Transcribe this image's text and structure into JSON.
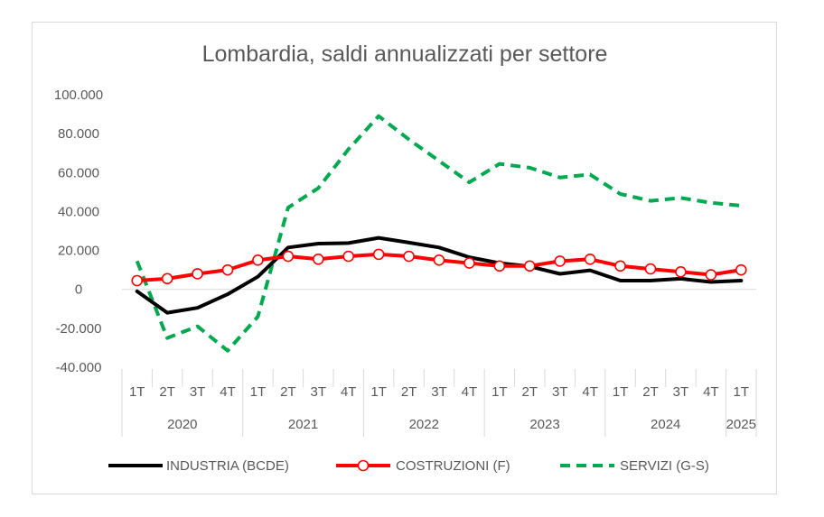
{
  "chart_data": {
    "type": "line",
    "title": "Lombardia, saldi annualizzati per settore",
    "xlabel": "",
    "ylabel": "",
    "ylim": [
      -40000,
      100000
    ],
    "y_ticks": [
      -40000,
      -20000,
      0,
      20000,
      40000,
      60000,
      80000,
      100000
    ],
    "y_tick_labels": [
      "-40.000",
      "-20.000",
      "0",
      "20.000",
      "40.000",
      "60.000",
      "80.000",
      "100.000"
    ],
    "grid": false,
    "legend_position": "bottom",
    "categories": [
      "1T",
      "2T",
      "3T",
      "4T",
      "1T",
      "2T",
      "3T",
      "4T",
      "1T",
      "2T",
      "3T",
      "4T",
      "1T",
      "2T",
      "3T",
      "4T",
      "1T",
      "2T",
      "3T",
      "4T",
      "1T"
    ],
    "years": [
      {
        "label": "2020",
        "quarters": 4
      },
      {
        "label": "2021",
        "quarters": 4
      },
      {
        "label": "2022",
        "quarters": 4
      },
      {
        "label": "2023",
        "quarters": 4
      },
      {
        "label": "2024",
        "quarters": 4
      },
      {
        "label": "2025",
        "quarters": 1
      }
    ],
    "series": [
      {
        "name": "INDUSTRIA (BCDE)",
        "color": "#000000",
        "style": "solid",
        "marker": "none",
        "values": [
          -1000,
          -12000,
          -9500,
          -2500,
          6500,
          21500,
          23500,
          23800,
          26500,
          24000,
          21500,
          16500,
          13500,
          11800,
          8000,
          9800,
          4500,
          4500,
          5500,
          3800,
          4500
        ]
      },
      {
        "name": "COSTRUZIONI (F)",
        "color": "#ff0000",
        "style": "solid",
        "marker": "circle",
        "values": [
          4500,
          5500,
          8000,
          10000,
          15000,
          17000,
          15500,
          17000,
          18000,
          17000,
          15000,
          13500,
          12000,
          12000,
          14500,
          15500,
          12000,
          10500,
          9000,
          7500,
          10000
        ]
      },
      {
        "name": "SERVIZI (G-S)",
        "color": "#00a94f",
        "style": "dashed",
        "marker": "none",
        "values": [
          14500,
          -25000,
          -19000,
          -31500,
          -14000,
          42000,
          52000,
          72000,
          89000,
          77000,
          66000,
          55000,
          64500,
          62500,
          57500,
          59000,
          49000,
          45500,
          47000,
          44500,
          43000
        ]
      }
    ]
  }
}
